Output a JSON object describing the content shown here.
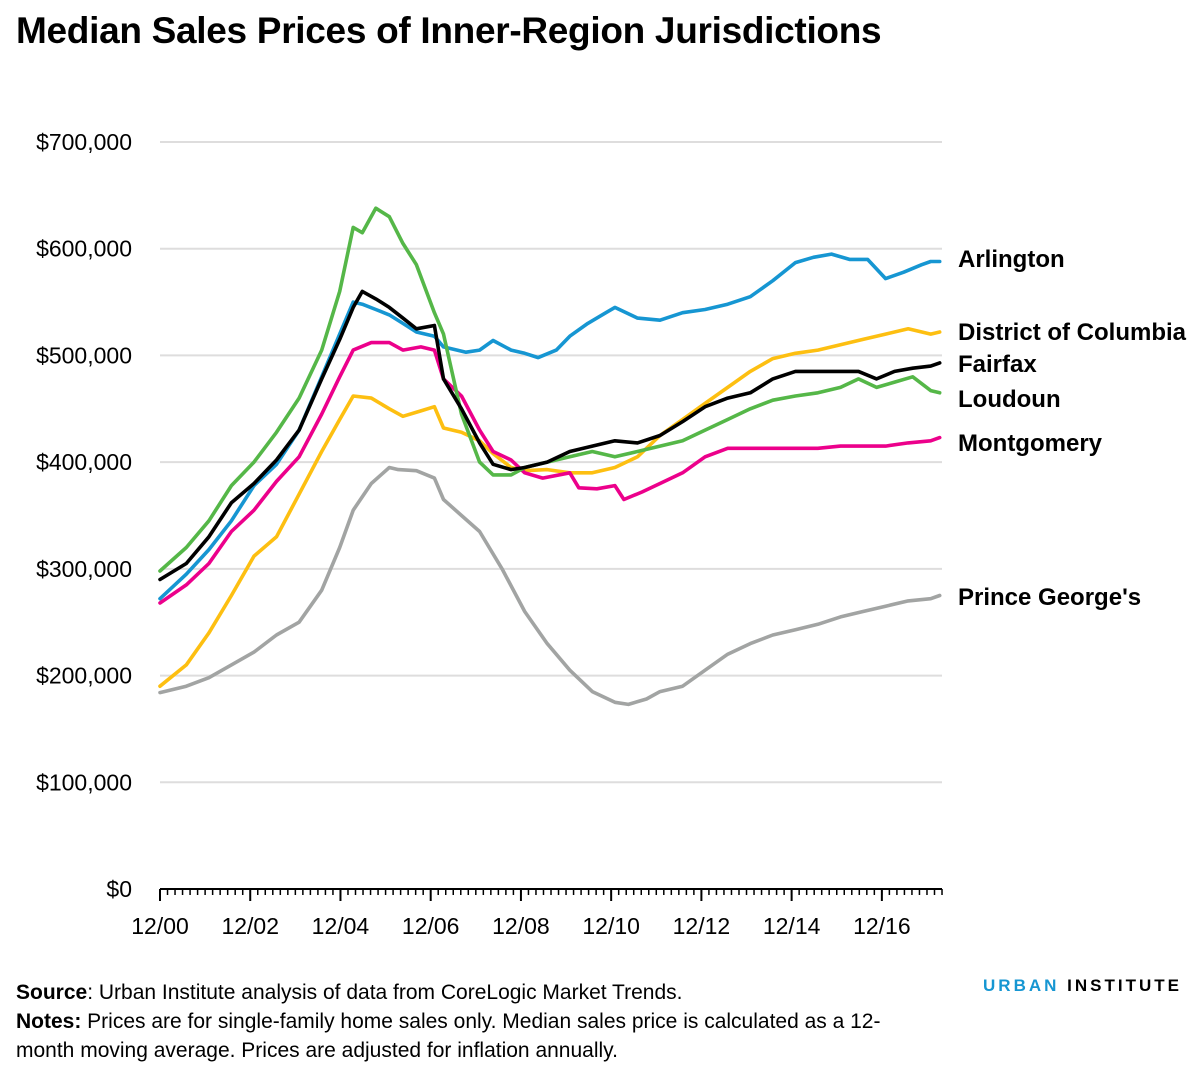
{
  "title": "Median Sales Prices of Inner-Region Jurisdictions",
  "chart_data": {
    "type": "line",
    "y_ticks": [
      "$0",
      "$100,000",
      "$200,000",
      "$300,000",
      "$400,000",
      "$500,000",
      "$600,000",
      "$700,000"
    ],
    "x_ticks": [
      "12/00",
      "12/02",
      "12/04",
      "12/06",
      "12/08",
      "12/10",
      "12/12",
      "12/14",
      "12/16"
    ],
    "ylim": [
      0,
      700000
    ],
    "xlim": [
      2000.917,
      2018.25
    ],
    "grid": "horizontal",
    "series": [
      {
        "name": "Arlington",
        "color": "#1696d2",
        "x": [
          2000.917,
          2001.5,
          2002.0,
          2002.5,
          2003.0,
          2003.5,
          2004.0,
          2004.5,
          2004.9,
          2005.2,
          2005.4,
          2005.7,
          2006.0,
          2006.3,
          2006.6,
          2007.0,
          2007.2,
          2007.7,
          2008.0,
          2008.3,
          2008.7,
          2009.0,
          2009.3,
          2009.7,
          2010.0,
          2010.4,
          2010.8,
          2011.0,
          2011.5,
          2012.0,
          2012.5,
          2013.0,
          2013.5,
          2014.0,
          2014.5,
          2015.0,
          2015.4,
          2015.8,
          2016.2,
          2016.6,
          2017.0,
          2017.4,
          2017.8,
          2018.0,
          2018.2
        ],
        "y": [
          272000,
          295000,
          318000,
          345000,
          378000,
          398000,
          430000,
          480000,
          520000,
          550000,
          548000,
          543000,
          538000,
          530000,
          522000,
          518000,
          508000,
          503000,
          505000,
          514000,
          505000,
          502000,
          498000,
          505000,
          518000,
          530000,
          540000,
          545000,
          535000,
          533000,
          540000,
          543000,
          548000,
          555000,
          570000,
          587000,
          592000,
          595000,
          590000,
          590000,
          572000,
          578000,
          585000,
          588000,
          588000
        ]
      },
      {
        "name": "District of Columbia",
        "color": "#fdbf11",
        "x": [
          2000.917,
          2001.5,
          2002.0,
          2002.5,
          2003.0,
          2003.5,
          2004.0,
          2004.5,
          2004.9,
          2005.2,
          2005.6,
          2006.0,
          2006.3,
          2006.7,
          2007.0,
          2007.2,
          2007.6,
          2008.0,
          2008.3,
          2008.7,
          2009.0,
          2009.5,
          2010.0,
          2010.5,
          2011.0,
          2011.5,
          2012.0,
          2012.5,
          2013.0,
          2013.5,
          2014.0,
          2014.5,
          2015.0,
          2015.5,
          2016.0,
          2016.5,
          2017.0,
          2017.5,
          2018.0,
          2018.2
        ],
        "y": [
          190000,
          210000,
          240000,
          275000,
          312000,
          330000,
          370000,
          410000,
          440000,
          462000,
          460000,
          450000,
          443000,
          448000,
          452000,
          432000,
          428000,
          420000,
          408000,
          395000,
          392000,
          393000,
          390000,
          390000,
          395000,
          405000,
          425000,
          440000,
          455000,
          470000,
          485000,
          497000,
          502000,
          505000,
          510000,
          515000,
          520000,
          525000,
          520000,
          522000
        ]
      },
      {
        "name": "Fairfax",
        "color": "#000000",
        "x": [
          2000.917,
          2001.5,
          2002.0,
          2002.5,
          2003.0,
          2003.5,
          2004.0,
          2004.5,
          2004.9,
          2005.2,
          2005.4,
          2005.7,
          2006.0,
          2006.3,
          2006.6,
          2007.0,
          2007.2,
          2007.6,
          2008.0,
          2008.3,
          2008.7,
          2009.0,
          2009.5,
          2010.0,
          2010.5,
          2011.0,
          2011.5,
          2012.0,
          2012.5,
          2013.0,
          2013.5,
          2014.0,
          2014.5,
          2015.0,
          2015.5,
          2016.0,
          2016.4,
          2016.8,
          2017.2,
          2017.6,
          2018.0,
          2018.2
        ],
        "y": [
          290000,
          305000,
          330000,
          362000,
          380000,
          402000,
          430000,
          478000,
          515000,
          545000,
          560000,
          553000,
          545000,
          535000,
          525000,
          528000,
          478000,
          450000,
          418000,
          398000,
          393000,
          395000,
          400000,
          410000,
          415000,
          420000,
          418000,
          425000,
          438000,
          452000,
          460000,
          465000,
          478000,
          485000,
          485000,
          485000,
          485000,
          478000,
          485000,
          488000,
          490000,
          493000
        ]
      },
      {
        "name": "Loudoun",
        "color": "#55b748",
        "x": [
          2000.917,
          2001.5,
          2002.0,
          2002.5,
          2003.0,
          2003.5,
          2004.0,
          2004.5,
          2004.9,
          2005.2,
          2005.4,
          2005.7,
          2006.0,
          2006.3,
          2006.6,
          2007.0,
          2007.2,
          2007.6,
          2008.0,
          2008.3,
          2008.7,
          2009.0,
          2009.5,
          2010.0,
          2010.5,
          2011.0,
          2011.5,
          2012.0,
          2012.5,
          2013.0,
          2013.5,
          2014.0,
          2014.5,
          2015.0,
          2015.5,
          2016.0,
          2016.4,
          2016.8,
          2017.2,
          2017.6,
          2018.0,
          2018.2
        ],
        "y": [
          298000,
          320000,
          345000,
          378000,
          400000,
          428000,
          460000,
          505000,
          560000,
          620000,
          615000,
          638000,
          630000,
          605000,
          585000,
          540000,
          520000,
          445000,
          400000,
          388000,
          388000,
          395000,
          400000,
          405000,
          410000,
          405000,
          410000,
          415000,
          420000,
          430000,
          440000,
          450000,
          458000,
          462000,
          465000,
          470000,
          478000,
          470000,
          475000,
          480000,
          467000,
          465000
        ]
      },
      {
        "name": "Montgomery",
        "color": "#ec008b",
        "x": [
          2000.917,
          2001.5,
          2002.0,
          2002.5,
          2003.0,
          2003.5,
          2004.0,
          2004.5,
          2004.9,
          2005.2,
          2005.6,
          2006.0,
          2006.3,
          2006.7,
          2007.0,
          2007.2,
          2007.6,
          2008.0,
          2008.3,
          2008.7,
          2009.0,
          2009.4,
          2010.0,
          2010.2,
          2010.6,
          2011.0,
          2011.2,
          2011.6,
          2012.0,
          2012.5,
          2013.0,
          2013.5,
          2014.0,
          2014.5,
          2015.0,
          2015.5,
          2016.0,
          2016.5,
          2017.0,
          2017.5,
          2018.0,
          2018.2
        ],
        "y": [
          268000,
          285000,
          305000,
          335000,
          355000,
          382000,
          405000,
          445000,
          480000,
          505000,
          512000,
          512000,
          505000,
          508000,
          505000,
          478000,
          462000,
          430000,
          410000,
          402000,
          390000,
          385000,
          390000,
          376000,
          375000,
          378000,
          365000,
          372000,
          380000,
          390000,
          405000,
          413000,
          413000,
          413000,
          413000,
          413000,
          415000,
          415000,
          415000,
          418000,
          420000,
          423000
        ]
      },
      {
        "name": "Prince George's",
        "color": "#a2a4a3",
        "x": [
          2000.917,
          2001.5,
          2002.0,
          2002.5,
          2003.0,
          2003.5,
          2004.0,
          2004.5,
          2004.9,
          2005.2,
          2005.6,
          2006.0,
          2006.2,
          2006.6,
          2007.0,
          2007.2,
          2007.6,
          2008.0,
          2008.5,
          2009.0,
          2009.5,
          2010.0,
          2010.5,
          2011.0,
          2011.3,
          2011.7,
          2012.0,
          2012.5,
          2013.0,
          2013.5,
          2014.0,
          2014.5,
          2015.0,
          2015.5,
          2016.0,
          2016.5,
          2017.0,
          2017.5,
          2018.0,
          2018.2
        ],
        "y": [
          184000,
          190000,
          198000,
          210000,
          222000,
          238000,
          250000,
          280000,
          320000,
          355000,
          380000,
          395000,
          393000,
          392000,
          385000,
          365000,
          350000,
          335000,
          300000,
          260000,
          230000,
          205000,
          185000,
          175000,
          173000,
          178000,
          185000,
          190000,
          205000,
          220000,
          230000,
          238000,
          243000,
          248000,
          255000,
          260000,
          265000,
          270000,
          272000,
          275000
        ]
      }
    ],
    "labels": [
      "Arlington",
      "District of Columbia",
      "Fairfax",
      "Loudoun",
      "Montgomery",
      "Prince George's"
    ]
  },
  "footer": {
    "source_label": "Source",
    "source_text": ": Urban Institute analysis of data from CoreLogic Market Trends.",
    "notes_label": "Notes:",
    "notes_text": " Prices are for single-family home sales only. Median sales price is calculated as a 12-month moving average. Prices are adjusted for inflation annually."
  },
  "brand": {
    "part1": "URBAN",
    "part2": "INSTITUTE"
  }
}
